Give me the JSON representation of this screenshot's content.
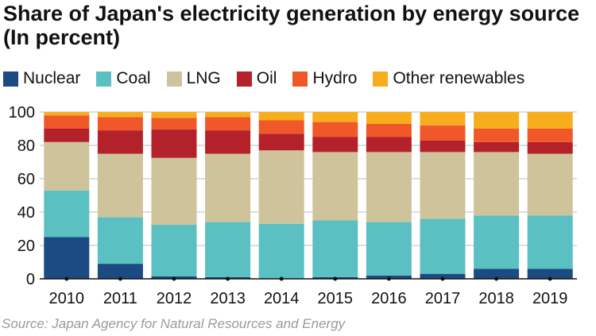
{
  "title": "Share of Japan's electricity generation by energy source (In percent)",
  "source": "Source: Japan Agency for Natural Resources and Energy",
  "chart_data": {
    "type": "bar",
    "stacked": true,
    "title": "Share of Japan's electricity generation by energy source (In percent)",
    "xlabel": "",
    "ylabel": "",
    "ylim": [
      0,
      100
    ],
    "yticks": [
      0,
      20,
      40,
      60,
      80,
      100
    ],
    "grid": true,
    "legend_position": "top",
    "categories": [
      "2010",
      "2011",
      "2012",
      "2013",
      "2014",
      "2015",
      "2016",
      "2017",
      "2018",
      "2019"
    ],
    "series": [
      {
        "name": "Nuclear",
        "color": "#1c4a82",
        "values": [
          25,
          9,
          1.5,
          1,
          0,
          1,
          2,
          3,
          6,
          6
        ]
      },
      {
        "name": "Coal",
        "color": "#5bc0c1",
        "values": [
          28,
          28,
          31,
          33,
          33,
          34,
          32,
          33,
          32,
          32
        ]
      },
      {
        "name": "LNG",
        "color": "#cfc39c",
        "values": [
          29,
          38,
          40,
          41,
          44,
          41,
          42,
          40,
          38,
          37
        ]
      },
      {
        "name": "Oil",
        "color": "#b3222a",
        "values": [
          8,
          14,
          17,
          14,
          10,
          9,
          9,
          7,
          6,
          7
        ]
      },
      {
        "name": "Hydro",
        "color": "#f0582a",
        "values": [
          8,
          8,
          7,
          8,
          8,
          9,
          8,
          9,
          8,
          8
        ]
      },
      {
        "name": "Other renewables",
        "color": "#f8ae1c",
        "values": [
          2,
          3,
          3.5,
          3,
          5,
          6,
          7,
          8,
          10,
          10
        ]
      }
    ]
  }
}
